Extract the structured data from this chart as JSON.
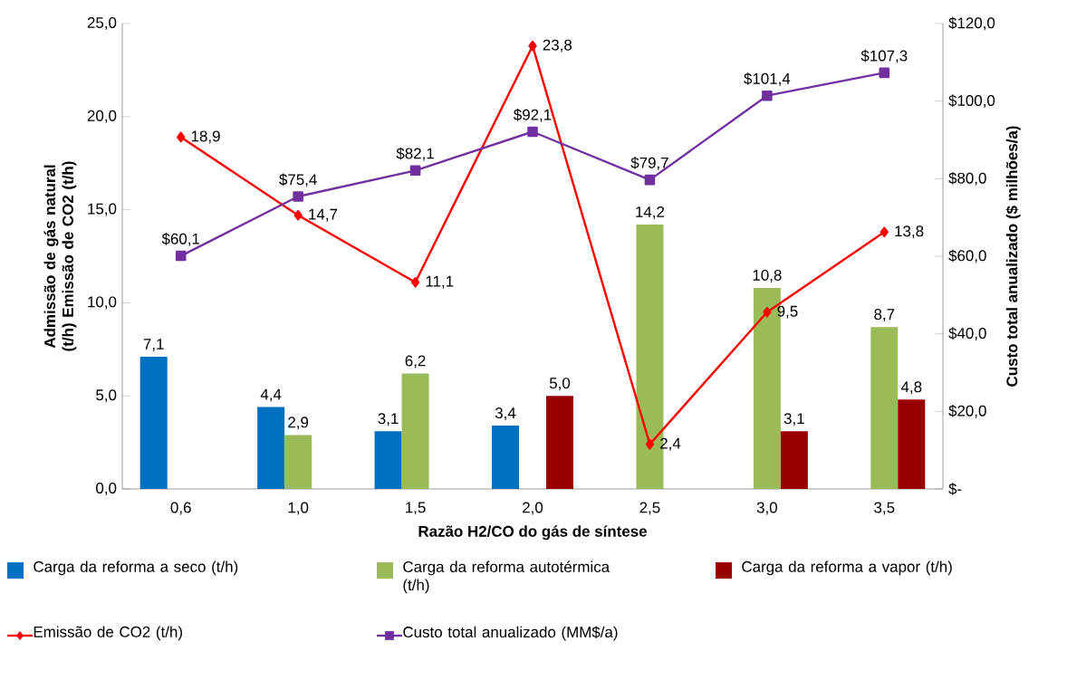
{
  "chart_data": {
    "type": "bar",
    "xlabel": "Razão H2/CO do gás de síntese",
    "ylabel": "Admissão de gás natural (t/h) Emissão de CO2 (t/h)",
    "y2label": "Custo total anualizado ($ milhões/a)",
    "categories": [
      "0,6",
      "1,0",
      "1,5",
      "2,0",
      "2,5",
      "3,0",
      "3,5"
    ],
    "series": [
      {
        "name": "Carga da reforma a seco (t/h)",
        "color": "#0070c0",
        "values": [
          7.1,
          4.4,
          3.1,
          3.4,
          null,
          null,
          null
        ],
        "value_labels": [
          "7,1",
          "4,4",
          "3,1",
          "3,4",
          null,
          null,
          null
        ]
      },
      {
        "name": "Carga da reforma autotérmica (t/h)",
        "color": "#9bbb59",
        "values": [
          null,
          2.9,
          6.2,
          null,
          14.2,
          10.8,
          8.7
        ],
        "value_labels": [
          null,
          "2,9",
          "6,2",
          null,
          "14,2",
          "10,8",
          "8,7"
        ]
      },
      {
        "name": "Carga da reforma a vapor (t/h)",
        "color": "#990000",
        "values": [
          null,
          null,
          null,
          5.0,
          null,
          3.1,
          4.8
        ],
        "value_labels": [
          null,
          null,
          null,
          "5,0",
          null,
          "3,1",
          "4,8"
        ]
      },
      {
        "name": "Emissão de CO2 (t/h)",
        "type": "line",
        "marker": "diamond",
        "color": "#ff0000",
        "values": [
          18.9,
          14.7,
          11.1,
          23.8,
          2.4,
          9.5,
          13.8
        ],
        "value_labels": [
          "18,9",
          "14,7",
          "11,1",
          "23,8",
          "2,4",
          "9,5",
          "13,8"
        ]
      },
      {
        "name": "Custo total anualizado (MM$/a)",
        "type": "line",
        "marker": "square",
        "axis": "y2",
        "color": "#7030a0",
        "values": [
          60.1,
          75.4,
          82.1,
          92.1,
          79.7,
          101.4,
          107.3
        ],
        "value_labels": [
          "$60,1",
          "$75,4",
          "$82,1",
          "$92,1",
          "$79,7",
          "$101,4",
          "$107,3"
        ]
      }
    ],
    "ylim": [
      0,
      25
    ],
    "yticks": [
      {
        "value": 0,
        "label": "0,0"
      },
      {
        "value": 5,
        "label": "5,0"
      },
      {
        "value": 10,
        "label": "10,0"
      },
      {
        "value": 15,
        "label": "15,0"
      },
      {
        "value": 20,
        "label": "20,0"
      },
      {
        "value": 25,
        "label": "25,0"
      }
    ],
    "y2lim": [
      0,
      120
    ],
    "y2ticks": [
      {
        "value": 0,
        "label": "$-"
      },
      {
        "value": 20,
        "label": "$20,0"
      },
      {
        "value": 40,
        "label": "$40,0"
      },
      {
        "value": 60,
        "label": "$60,0"
      },
      {
        "value": 80,
        "label": "$80,0"
      },
      {
        "value": 100,
        "label": "$100,0"
      },
      {
        "value": 120,
        "label": "$120,0"
      }
    ],
    "legend": "bottom"
  }
}
